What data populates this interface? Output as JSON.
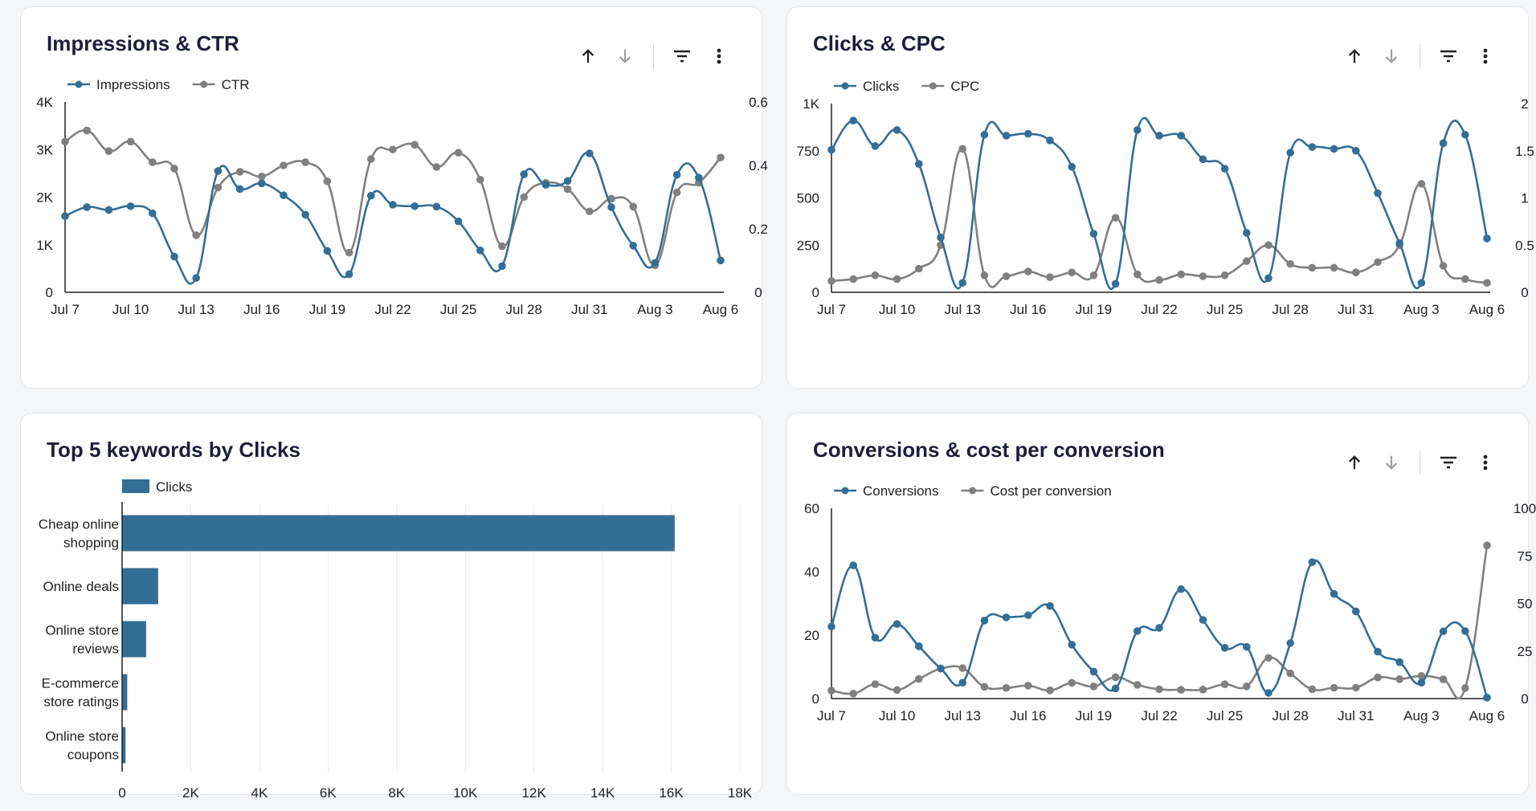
{
  "colors": {
    "primary": "#336e96",
    "secondary": "#808080",
    "grid": "#e8eaed",
    "axis": "#202124"
  },
  "toolbar": {
    "sort_up_icon": "arrow-up-icon",
    "sort_down_icon": "arrow-down-icon",
    "filter_icon": "filter-icon",
    "more_icon": "more-vert-icon"
  },
  "chart_data": [
    {
      "type": "line",
      "title": "Impressions & CTR",
      "x": [
        "Jul 7",
        "Jul 8",
        "Jul 9",
        "Jul 10",
        "Jul 11",
        "Jul 12",
        "Jul 13",
        "Jul 14",
        "Jul 15",
        "Jul 16",
        "Jul 17",
        "Jul 18",
        "Jul 19",
        "Jul 20",
        "Jul 21",
        "Jul 22",
        "Jul 23",
        "Jul 24",
        "Jul 25",
        "Jul 26",
        "Jul 27",
        "Jul 28",
        "Jul 29",
        "Jul 30",
        "Jul 31",
        "Aug 1",
        "Aug 2",
        "Aug 3",
        "Aug 4",
        "Aug 5",
        "Aug 6"
      ],
      "x_ticks": [
        "Jul 7",
        "Jul 10",
        "Jul 13",
        "Jul 16",
        "Jul 19",
        "Jul 22",
        "Jul 25",
        "Jul 28",
        "Jul 31",
        "Aug 3",
        "Aug 6"
      ],
      "legend": "top-left",
      "series": [
        {
          "name": "Impressions",
          "axis": "left",
          "color": "#336e96",
          "values": [
            1600,
            1790,
            1730,
            1810,
            1660,
            750,
            300,
            2550,
            2170,
            2290,
            2040,
            1630,
            870,
            380,
            2030,
            1840,
            1810,
            1800,
            1490,
            880,
            550,
            2480,
            2260,
            2340,
            2920,
            1790,
            980,
            620,
            2470,
            2410,
            670
          ]
        },
        {
          "name": "CTR",
          "axis": "right",
          "color": "#808080",
          "values": [
            0.475,
            0.51,
            0.445,
            0.475,
            0.41,
            0.39,
            0.18,
            0.33,
            0.38,
            0.365,
            0.4,
            0.41,
            0.35,
            0.125,
            0.42,
            0.45,
            0.465,
            0.395,
            0.44,
            0.355,
            0.145,
            0.3,
            0.345,
            0.325,
            0.255,
            0.295,
            0.27,
            0.085,
            0.315,
            0.345,
            0.425
          ]
        }
      ],
      "yleft": {
        "min": 0,
        "max": 4000,
        "ticks": [
          0,
          1000,
          2000,
          3000,
          4000
        ],
        "tick_labels": [
          "0",
          "1K",
          "2K",
          "3K",
          "4K"
        ]
      },
      "yright": {
        "min": 0,
        "max": 0.6,
        "ticks": [
          0,
          0.2,
          0.4,
          0.6
        ],
        "tick_labels": [
          "0",
          "0.2",
          "0.4",
          "0.6"
        ]
      }
    },
    {
      "type": "line",
      "title": "Clicks & CPC",
      "x": [
        "Jul 7",
        "Jul 8",
        "Jul 9",
        "Jul 10",
        "Jul 11",
        "Jul 12",
        "Jul 13",
        "Jul 14",
        "Jul 15",
        "Jul 16",
        "Jul 17",
        "Jul 18",
        "Jul 19",
        "Jul 20",
        "Jul 21",
        "Jul 22",
        "Jul 23",
        "Jul 24",
        "Jul 25",
        "Jul 26",
        "Jul 27",
        "Jul 28",
        "Jul 29",
        "Jul 30",
        "Jul 31",
        "Aug 1",
        "Aug 2",
        "Aug 3",
        "Aug 4",
        "Aug 5",
        "Aug 6"
      ],
      "x_ticks": [
        "Jul 7",
        "Jul 10",
        "Jul 13",
        "Jul 16",
        "Jul 19",
        "Jul 22",
        "Jul 25",
        "Jul 28",
        "Jul 31",
        "Aug 3",
        "Aug 6"
      ],
      "legend": "top-left",
      "series": [
        {
          "name": "Clicks",
          "axis": "left",
          "color": "#336e96",
          "values": [
            755,
            910,
            775,
            860,
            680,
            290,
            50,
            835,
            830,
            840,
            805,
            665,
            310,
            45,
            860,
            830,
            830,
            705,
            655,
            315,
            75,
            740,
            770,
            760,
            750,
            525,
            260,
            50,
            790,
            835,
            285
          ]
        },
        {
          "name": "CPC",
          "axis": "right",
          "color": "#808080",
          "values": [
            0.12,
            0.14,
            0.18,
            0.14,
            0.25,
            0.5,
            1.52,
            0.18,
            0.17,
            0.22,
            0.16,
            0.21,
            0.18,
            0.79,
            0.19,
            0.13,
            0.19,
            0.17,
            0.18,
            0.33,
            0.5,
            0.3,
            0.26,
            0.26,
            0.21,
            0.32,
            0.5,
            1.15,
            0.28,
            0.14,
            0.1
          ]
        }
      ],
      "yleft": {
        "min": 0,
        "max": 1000,
        "ticks": [
          0,
          250,
          500,
          750,
          1000
        ],
        "tick_labels": [
          "0",
          "250",
          "500",
          "750",
          "1K"
        ]
      },
      "yright": {
        "min": 0,
        "max": 2,
        "ticks": [
          0,
          0.5,
          1,
          1.5,
          2
        ],
        "tick_labels": [
          "0",
          "0.5",
          "1",
          "1.5",
          "2"
        ]
      }
    },
    {
      "type": "bar",
      "orientation": "horizontal",
      "title": "Top 5 keywords by Clicks",
      "legend": "top-left",
      "series_name": "Clicks",
      "color": "#336e96",
      "categories": [
        [
          "Cheap online",
          "shopping"
        ],
        [
          "Online deals"
        ],
        [
          "Online store",
          "reviews"
        ],
        [
          "E-commerce",
          "store ratings"
        ],
        [
          "Online store",
          "coupons"
        ]
      ],
      "values": [
        16100,
        1050,
        700,
        150,
        100
      ],
      "xaxis": {
        "min": 0,
        "max": 18000,
        "ticks": [
          0,
          2000,
          4000,
          6000,
          8000,
          10000,
          12000,
          14000,
          16000,
          18000
        ],
        "tick_labels": [
          "0",
          "2K",
          "4K",
          "6K",
          "8K",
          "10K",
          "12K",
          "14K",
          "16K",
          "18K"
        ]
      }
    },
    {
      "type": "line",
      "title": "Conversions & cost per conversion",
      "x": [
        "Jul 7",
        "Jul 8",
        "Jul 9",
        "Jul 10",
        "Jul 11",
        "Jul 12",
        "Jul 13",
        "Jul 14",
        "Jul 15",
        "Jul 16",
        "Jul 17",
        "Jul 18",
        "Jul 19",
        "Jul 20",
        "Jul 21",
        "Jul 22",
        "Jul 23",
        "Jul 24",
        "Jul 25",
        "Jul 26",
        "Jul 27",
        "Jul 28",
        "Jul 29",
        "Jul 30",
        "Jul 31",
        "Aug 1",
        "Aug 2",
        "Aug 3",
        "Aug 4",
        "Aug 5",
        "Aug 6"
      ],
      "x_ticks": [
        "Jul 7",
        "Jul 10",
        "Jul 13",
        "Jul 16",
        "Jul 19",
        "Jul 22",
        "Jul 25",
        "Jul 28",
        "Jul 31",
        "Aug 3",
        "Aug 6"
      ],
      "legend": "top-left",
      "series": [
        {
          "name": "Conversions",
          "axis": "left",
          "color": "#336e96",
          "values": [
            22.7,
            42,
            19.2,
            23.5,
            16.5,
            9.5,
            5,
            24.6,
            25.6,
            26.3,
            29.2,
            17,
            8.5,
            3.2,
            21.3,
            22.3,
            34.5,
            24.8,
            16,
            16.3,
            1.8,
            17.5,
            43,
            33,
            27.5,
            14.8,
            11.5,
            5,
            21.2,
            21.3,
            0.3
          ]
        },
        {
          "name": "Cost per conversion",
          "axis": "right",
          "color": "#808080",
          "values": [
            4.2,
            2.6,
            7.6,
            4.5,
            10.3,
            15.7,
            16,
            6.2,
            5.6,
            6.8,
            4.3,
            8.3,
            6.4,
            11.2,
            7.2,
            4.9,
            4.6,
            4.7,
            7.5,
            6.4,
            21.4,
            13.2,
            4.9,
            5.7,
            5.7,
            11.1,
            10.2,
            11.9,
            10.1,
            5.5,
            80.5
          ]
        }
      ],
      "yleft": {
        "min": 0,
        "max": 60,
        "ticks": [
          0,
          20,
          40,
          60
        ],
        "tick_labels": [
          "0",
          "20",
          "40",
          "60"
        ]
      },
      "yright": {
        "min": 0,
        "max": 100,
        "ticks": [
          0,
          25,
          50,
          75,
          100
        ],
        "tick_labels": [
          "0",
          "25",
          "50",
          "75",
          "100"
        ]
      }
    }
  ]
}
